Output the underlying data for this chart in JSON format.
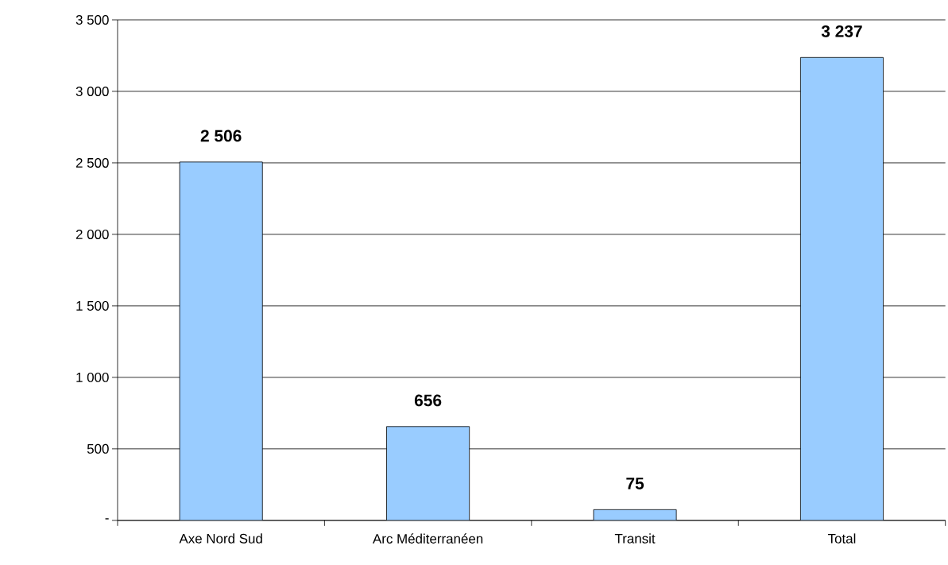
{
  "chart_data": {
    "type": "bar",
    "categories": [
      "Axe Nord Sud",
      "Arc Méditerranéen",
      "Transit",
      "Total"
    ],
    "values": [
      2506,
      656,
      75,
      3237
    ],
    "value_labels": [
      "2 506",
      "656",
      "75",
      "3 237"
    ],
    "color": "#99ccff",
    "ylim": [
      0,
      3500
    ],
    "yticks": [
      {
        "value": 0,
        "label": "-"
      },
      {
        "value": 500,
        "label": "500"
      },
      {
        "value": 1000,
        "label": "1 000"
      },
      {
        "value": 1500,
        "label": "1 500"
      },
      {
        "value": 2000,
        "label": "2 000"
      },
      {
        "value": 2500,
        "label": "2 500"
      },
      {
        "value": 3000,
        "label": "3 000"
      },
      {
        "value": 3500,
        "label": "3 500"
      }
    ],
    "grid": "y"
  }
}
